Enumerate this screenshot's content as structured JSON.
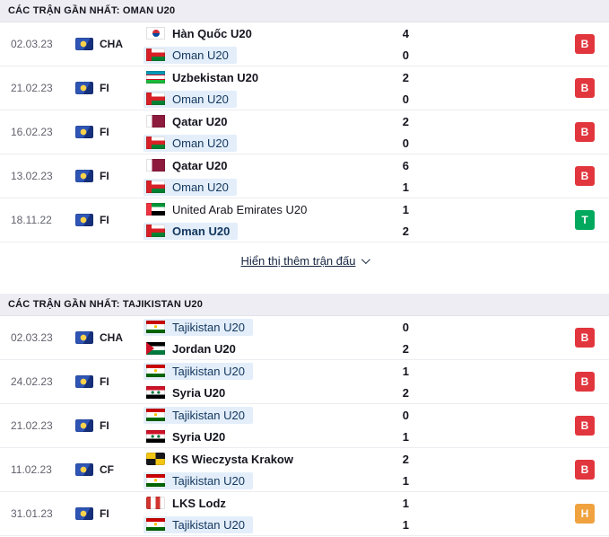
{
  "colors": {
    "loss_badge": "#e2363e",
    "win_badge": "#00a95d",
    "draw_badge": "#f0a23f",
    "highlight_team_bg": "#e3eefa",
    "section_header_bg": "#eeedf3"
  },
  "sections": [
    {
      "title": "CÁC TRẬN GẦN NHẤT: OMAN U20",
      "show_more_label": "Hiển thị thêm trận đấu",
      "rows": [
        {
          "date": "02.03.23",
          "competition": "CHA",
          "competition_icon": "tournament-flag-icon",
          "teams": [
            {
              "name": "Hàn Quốc U20",
              "flag": "south-korea",
              "score": "4",
              "style": "bold"
            },
            {
              "name": "Oman U20",
              "flag": "oman",
              "score": "0",
              "style": "highlight"
            }
          ],
          "result": "B",
          "result_type": "loss"
        },
        {
          "date": "21.02.23",
          "competition": "FI",
          "competition_icon": "tournament-flag-icon",
          "teams": [
            {
              "name": "Uzbekistan U20",
              "flag": "uzbekistan",
              "score": "2",
              "style": "bold"
            },
            {
              "name": "Oman U20",
              "flag": "oman",
              "score": "0",
              "style": "highlight"
            }
          ],
          "result": "B",
          "result_type": "loss"
        },
        {
          "date": "16.02.23",
          "competition": "FI",
          "competition_icon": "tournament-flag-icon",
          "teams": [
            {
              "name": "Qatar U20",
              "flag": "qatar",
              "score": "2",
              "style": "bold"
            },
            {
              "name": "Oman U20",
              "flag": "oman",
              "score": "0",
              "style": "highlight"
            }
          ],
          "result": "B",
          "result_type": "loss"
        },
        {
          "date": "13.02.23",
          "competition": "FI",
          "competition_icon": "tournament-flag-icon",
          "teams": [
            {
              "name": "Qatar U20",
              "flag": "qatar",
              "score": "6",
              "style": "bold"
            },
            {
              "name": "Oman U20",
              "flag": "oman",
              "score": "1",
              "style": "highlight"
            }
          ],
          "result": "B",
          "result_type": "loss"
        },
        {
          "date": "18.11.22",
          "competition": "FI",
          "competition_icon": "tournament-flag-icon",
          "teams": [
            {
              "name": "United Arab Emirates U20",
              "flag": "uae",
              "score": "1",
              "style": "normal"
            },
            {
              "name": "Oman U20",
              "flag": "oman",
              "score": "2",
              "style": "highlight-bold"
            }
          ],
          "result": "T",
          "result_type": "win"
        }
      ]
    },
    {
      "title": "CÁC TRẬN GẦN NHẤT: TAJIKISTAN U20",
      "rows": [
        {
          "date": "02.03.23",
          "competition": "CHA",
          "competition_icon": "tournament-flag-icon",
          "teams": [
            {
              "name": "Tajikistan U20",
              "flag": "tajikistan",
              "score": "0",
              "style": "highlight"
            },
            {
              "name": "Jordan U20",
              "flag": "jordan",
              "score": "2",
              "style": "bold"
            }
          ],
          "result": "B",
          "result_type": "loss"
        },
        {
          "date": "24.02.23",
          "competition": "FI",
          "competition_icon": "tournament-flag-icon",
          "teams": [
            {
              "name": "Tajikistan U20",
              "flag": "tajikistan",
              "score": "1",
              "style": "highlight"
            },
            {
              "name": "Syria U20",
              "flag": "syria",
              "score": "2",
              "style": "bold"
            }
          ],
          "result": "B",
          "result_type": "loss"
        },
        {
          "date": "21.02.23",
          "competition": "FI",
          "competition_icon": "tournament-flag-icon",
          "teams": [
            {
              "name": "Tajikistan U20",
              "flag": "tajikistan",
              "score": "0",
              "style": "highlight"
            },
            {
              "name": "Syria U20",
              "flag": "syria",
              "score": "1",
              "style": "bold"
            }
          ],
          "result": "B",
          "result_type": "loss"
        },
        {
          "date": "11.02.23",
          "competition": "CF",
          "competition_icon": "tournament-flag-icon",
          "teams": [
            {
              "name": "KS Wieczysta Krakow",
              "flag": "wieczysta-krakow",
              "score": "2",
              "style": "bold"
            },
            {
              "name": "Tajikistan U20",
              "flag": "tajikistan",
              "score": "1",
              "style": "highlight"
            }
          ],
          "result": "B",
          "result_type": "loss"
        },
        {
          "date": "31.01.23",
          "competition": "FI",
          "competition_icon": "tournament-flag-icon",
          "teams": [
            {
              "name": "LKS Lodz",
              "flag": "lks-lodz",
              "score": "1",
              "style": "bold"
            },
            {
              "name": "Tajikistan U20",
              "flag": "tajikistan",
              "score": "1",
              "style": "highlight"
            }
          ],
          "result": "H",
          "result_type": "draw"
        }
      ]
    }
  ]
}
